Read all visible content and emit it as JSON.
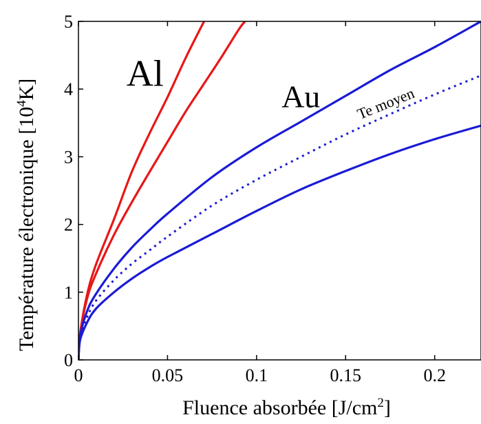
{
  "chart_data": {
    "type": "line",
    "xlabel_main": "Fluence absorbée [J/cm",
    "xlabel_sup": "2",
    "xlabel_end": "]",
    "ylabel_main": "Température électronique [10",
    "ylabel_sup": "4",
    "ylabel_end": "K]",
    "xlim": [
      0,
      0.226
    ],
    "ylim": [
      0,
      5
    ],
    "xticks": [
      0,
      0.05,
      0.1,
      0.15,
      0.2
    ],
    "xtick_labels": [
      "0",
      "0.05",
      "0.1",
      "0.15",
      "0.2"
    ],
    "yticks": [
      0,
      1,
      2,
      3,
      4,
      5
    ],
    "ytick_labels": [
      "0",
      "1",
      "2",
      "3",
      "4",
      "5"
    ],
    "grid": false,
    "annotations": [
      {
        "text": "Al",
        "x": 0.027,
        "y": 4.05,
        "size": 54,
        "rotate": 0
      },
      {
        "text": "Au",
        "x": 0.114,
        "y": 3.73,
        "size": 46,
        "rotate": 0
      },
      {
        "text": "Te moyen",
        "x": 0.158,
        "y": 3.55,
        "size": 22,
        "rotate": -22
      }
    ],
    "series": [
      {
        "color": "#e81717",
        "style": "solid",
        "points": [
          [
            0,
            0
          ],
          [
            0.001,
            0.4
          ],
          [
            0.005,
            0.98
          ],
          [
            0.01,
            1.42
          ],
          [
            0.02,
            2.08
          ],
          [
            0.03,
            2.78
          ],
          [
            0.04,
            3.35
          ],
          [
            0.05,
            3.88
          ],
          [
            0.06,
            4.45
          ],
          [
            0.0705,
            5.0
          ]
        ]
      },
      {
        "color": "#e81717",
        "style": "solid",
        "points": [
          [
            0,
            0
          ],
          [
            0.001,
            0.4
          ],
          [
            0.005,
            0.92
          ],
          [
            0.01,
            1.28
          ],
          [
            0.02,
            1.85
          ],
          [
            0.03,
            2.33
          ],
          [
            0.04,
            2.78
          ],
          [
            0.05,
            3.22
          ],
          [
            0.06,
            3.66
          ],
          [
            0.07,
            4.06
          ],
          [
            0.08,
            4.46
          ],
          [
            0.09,
            4.88
          ],
          [
            0.0935,
            5.0
          ]
        ]
      },
      {
        "color": "#1a1ad6",
        "style": "solid",
        "points": [
          [
            0,
            0
          ],
          [
            0.001,
            0.36
          ],
          [
            0.005,
            0.73
          ],
          [
            0.01,
            0.98
          ],
          [
            0.02,
            1.35
          ],
          [
            0.03,
            1.66
          ],
          [
            0.04,
            1.92
          ],
          [
            0.05,
            2.16
          ],
          [
            0.075,
            2.7
          ],
          [
            0.1,
            3.14
          ],
          [
            0.125,
            3.52
          ],
          [
            0.15,
            3.9
          ],
          [
            0.175,
            4.28
          ],
          [
            0.2,
            4.62
          ],
          [
            0.226,
            5.0
          ]
        ]
      },
      {
        "color": "#1a1ad6",
        "style": "dotted",
        "points": [
          [
            0,
            0
          ],
          [
            0.001,
            0.33
          ],
          [
            0.005,
            0.64
          ],
          [
            0.01,
            0.88
          ],
          [
            0.02,
            1.18
          ],
          [
            0.03,
            1.42
          ],
          [
            0.04,
            1.62
          ],
          [
            0.05,
            1.82
          ],
          [
            0.075,
            2.28
          ],
          [
            0.1,
            2.66
          ],
          [
            0.125,
            3.0
          ],
          [
            0.15,
            3.33
          ],
          [
            0.175,
            3.63
          ],
          [
            0.2,
            3.92
          ],
          [
            0.226,
            4.2
          ]
        ]
      },
      {
        "color": "#1a1ad6",
        "style": "solid",
        "points": [
          [
            0,
            0
          ],
          [
            0.001,
            0.3
          ],
          [
            0.005,
            0.56
          ],
          [
            0.01,
            0.76
          ],
          [
            0.02,
            1.0
          ],
          [
            0.03,
            1.2
          ],
          [
            0.04,
            1.37
          ],
          [
            0.05,
            1.52
          ],
          [
            0.075,
            1.86
          ],
          [
            0.1,
            2.2
          ],
          [
            0.125,
            2.52
          ],
          [
            0.15,
            2.79
          ],
          [
            0.175,
            3.04
          ],
          [
            0.2,
            3.26
          ],
          [
            0.226,
            3.46
          ]
        ]
      }
    ]
  }
}
